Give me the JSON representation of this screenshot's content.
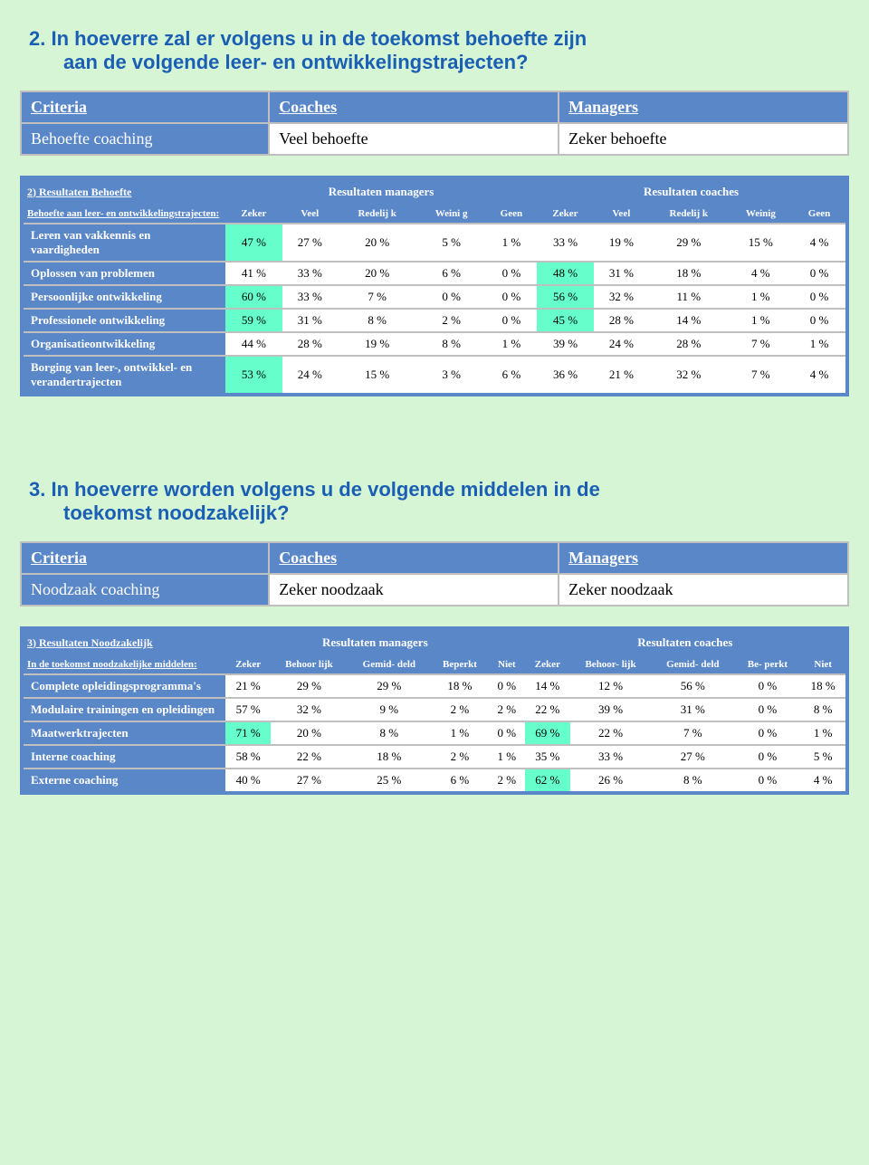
{
  "colors": {
    "page_bg": "#d5f5d5",
    "heading": "#1a5fb4",
    "header_bg": "#5a87c7",
    "border_grey": "#bfbfbf",
    "highlight": "#66ffcc"
  },
  "q2": {
    "title_l1": "2. In hoeverre zal er volgens u in de toekomst behoefte zijn",
    "title_l2": "aan de volgende leer- en ontwikkelingstrajecten?",
    "criteria": {
      "h_criteria": "Criteria",
      "h_coaches": "Coaches",
      "h_managers": "Managers",
      "r_label": "Behoefte coaching",
      "r_coaches": "Veel behoefte",
      "r_managers": "Zeker behoefte"
    },
    "table": {
      "top_left": "2) Resultaten Behoefte",
      "managers_hdr": "Resultaten managers",
      "coaches_hdr": "Resultaten coaches",
      "sub_left": "Behoefte aan leer- en ontwikkelingstrajecten:",
      "cols_m": [
        "Zeker",
        "Veel",
        "Redelij k",
        "Weini g",
        "Geen"
      ],
      "cols_c": [
        "Zeker",
        "Veel",
        "Redelij k",
        "Weinig",
        "Geen"
      ],
      "rows": [
        {
          "label": "Leren van vakkennis en vaardigheden",
          "m": [
            "47 %",
            "27 %",
            "20 %",
            "5 %",
            "1 %"
          ],
          "c": [
            "33 %",
            "19 %",
            "29 %",
            "15 %",
            "4 %"
          ],
          "hi_m": 0
        },
        {
          "label": "Oplossen van problemen",
          "m": [
            "41 %",
            "33 %",
            "20 %",
            "6 %",
            "0 %"
          ],
          "c": [
            "48 %",
            "31 %",
            "18 %",
            "4 %",
            "0 %"
          ],
          "hi_c": 0
        },
        {
          "label": "Persoonlijke ontwikkeling",
          "m": [
            "60 %",
            "33 %",
            "7 %",
            "0 %",
            "0 %"
          ],
          "c": [
            "56 %",
            "32 %",
            "11 %",
            "1 %",
            "0 %"
          ],
          "hi_m": 0,
          "hi_c": 0
        },
        {
          "label": "Professionele ontwikkeling",
          "m": [
            "59 %",
            "31 %",
            "8 %",
            "2 %",
            "0 %"
          ],
          "c": [
            "45 %",
            "28 %",
            "14 %",
            "1 %",
            "0 %"
          ],
          "hi_m": 0,
          "hi_c": 0
        },
        {
          "label": "Organisatieontwikkeling",
          "m": [
            "44 %",
            "28 %",
            "19 %",
            "8 %",
            "1 %"
          ],
          "c": [
            "39 %",
            "24 %",
            "28 %",
            "7 %",
            "1 %"
          ]
        },
        {
          "label": "Borging van leer-, ontwikkel- en verandertrajecten",
          "m": [
            "53 %",
            "24 %",
            "15 %",
            "3 %",
            "6 %"
          ],
          "c": [
            "36 %",
            "21 %",
            "32 %",
            "7 %",
            "4 %"
          ],
          "hi_m": 0
        }
      ]
    }
  },
  "q3": {
    "title_l1": "3. In hoeverre worden volgens u de volgende middelen in de",
    "title_l2": "toekomst noodzakelijk?",
    "criteria": {
      "h_criteria": "Criteria",
      "h_coaches": "Coaches",
      "h_managers": "Managers",
      "r_label": "Noodzaak coaching",
      "r_coaches": "Zeker noodzaak",
      "r_managers": "Zeker noodzaak"
    },
    "table": {
      "top_left": "3) Resultaten Noodzakelijk",
      "managers_hdr": "Resultaten managers",
      "coaches_hdr": "Resultaten coaches",
      "sub_left": "In de toekomst noodzakelijke middelen:",
      "cols_m": [
        "Zeker",
        "Behoor lijk",
        "Gemid- deld",
        "Beperkt",
        "Niet"
      ],
      "cols_c": [
        "Zeker",
        "Behoor- lijk",
        "Gemid- deld",
        "Be- perkt",
        "Niet"
      ],
      "rows": [
        {
          "label": "Complete opleidingsprogramma's",
          "m": [
            "21 %",
            "29 %",
            "29 %",
            "18 %",
            "0 %"
          ],
          "c": [
            "14 %",
            "12 %",
            "56 %",
            "0 %",
            "18 %"
          ]
        },
        {
          "label": "Modulaire trainingen en opleidingen",
          "m": [
            "57 %",
            "32 %",
            "9 %",
            "2 %",
            "2 %"
          ],
          "c": [
            "22 %",
            "39 %",
            "31 %",
            "0 %",
            "8 %"
          ]
        },
        {
          "label": "Maatwerktrajecten",
          "m": [
            "71 %",
            "20 %",
            "8 %",
            "1 %",
            "0 %"
          ],
          "c": [
            "69 %",
            "22 %",
            "7 %",
            "0 %",
            "1 %"
          ],
          "hi_m": 0,
          "hi_c": 0
        },
        {
          "label": "Interne coaching",
          "m": [
            "58 %",
            "22 %",
            "18 %",
            "2 %",
            "1 %"
          ],
          "c": [
            "35 %",
            "33 %",
            "27 %",
            "0 %",
            "5 %"
          ]
        },
        {
          "label": "Externe coaching",
          "m": [
            "40 %",
            "27 %",
            "25 %",
            "6 %",
            "2 %"
          ],
          "c": [
            "62 %",
            "26 %",
            "8 %",
            "0 %",
            "4 %"
          ],
          "hi_c": 0
        }
      ]
    }
  }
}
